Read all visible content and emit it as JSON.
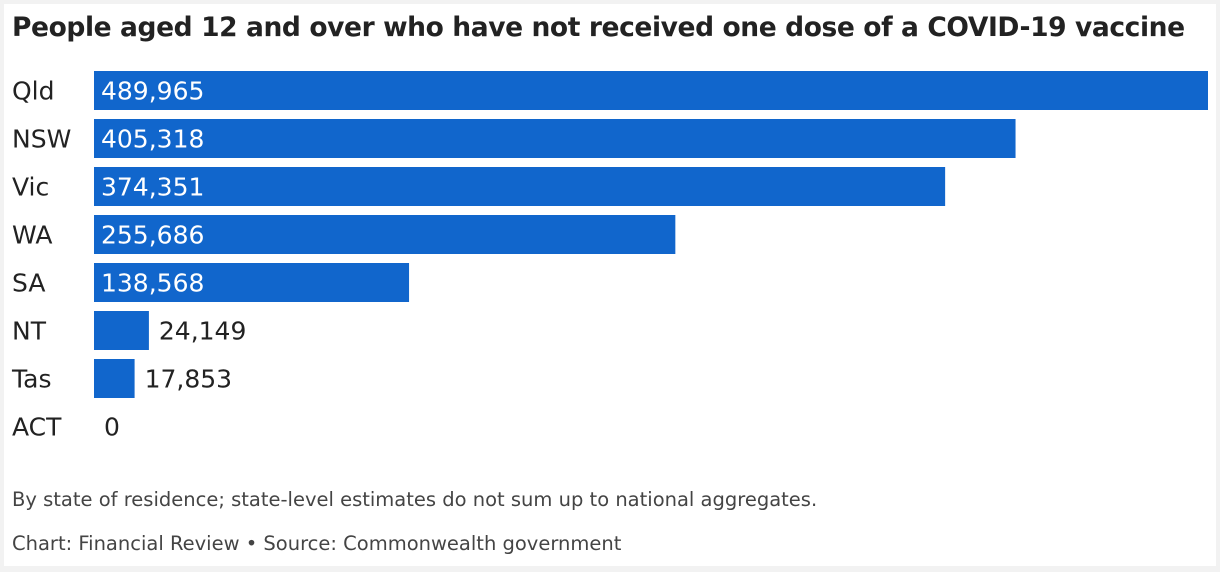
{
  "chart_data": {
    "type": "bar",
    "orientation": "horizontal",
    "title": "People aged 12 and over who have not received one dose of a COVID-19 vaccine",
    "categories": [
      "Qld",
      "NSW",
      "Vic",
      "WA",
      "SA",
      "NT",
      "Tas",
      "ACT"
    ],
    "values": [
      489965,
      405318,
      374351,
      255686,
      138568,
      24149,
      17853,
      0
    ],
    "value_labels": [
      "489,965",
      "405,318",
      "374,351",
      "255,686",
      "138,568",
      "24,149",
      "17,853",
      "0"
    ],
    "xlim": [
      0,
      489965
    ],
    "grid": false,
    "legend": "none",
    "colors": {
      "bar": "#1166cc",
      "label_inside": "#ffffff",
      "label_outside": "#222222"
    }
  },
  "note": "By state of residence; state-level estimates do not sum up to national aggregates.",
  "credit": "Chart: Financial Review • Source: Commonwealth government"
}
